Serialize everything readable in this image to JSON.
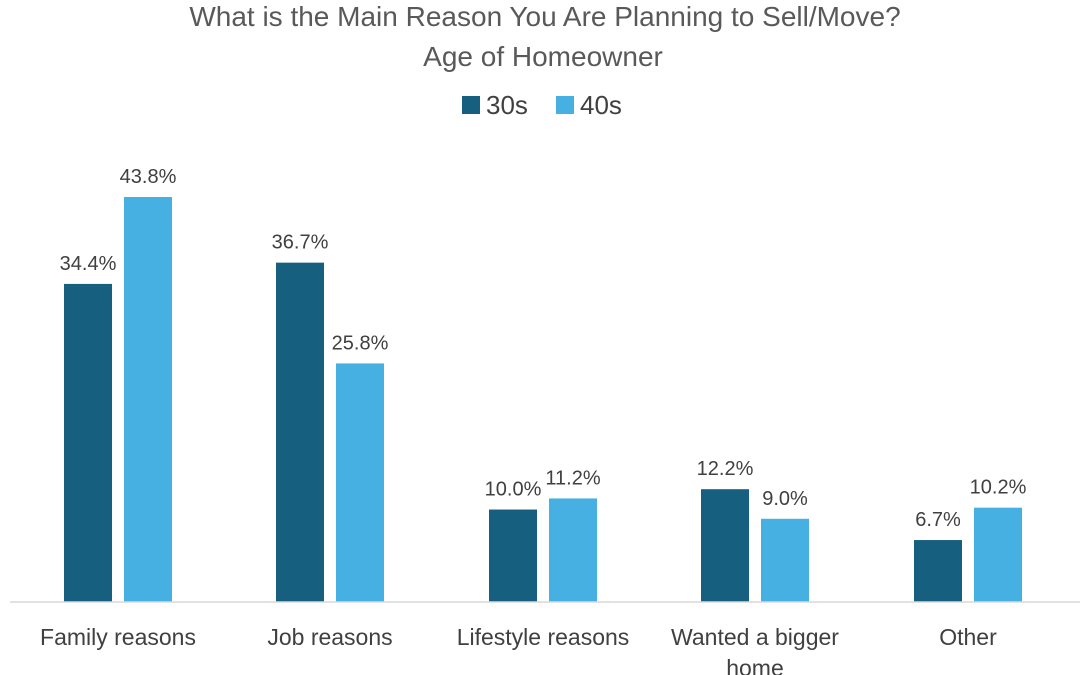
{
  "chart_data": {
    "type": "bar",
    "title": "What is the Main Reason You Are Planning to Sell/Move?",
    "subtitle": "Age of Homeowner",
    "categories": [
      "Family reasons",
      "Job reasons",
      "Lifestyle reasons",
      "Wanted a bigger home",
      "Other"
    ],
    "category_lines": [
      [
        "Family reasons"
      ],
      [
        "Job reasons"
      ],
      [
        "Lifestyle reasons"
      ],
      [
        "Wanted a bigger",
        "home"
      ],
      [
        "Other"
      ]
    ],
    "series": [
      {
        "name": "30s",
        "color": "#175f7f",
        "values": [
          34.4,
          36.7,
          10.0,
          12.2,
          6.7
        ],
        "labels": [
          "34.4%",
          "36.7%",
          "10.0%",
          "12.2%",
          "6.7%"
        ]
      },
      {
        "name": "40s",
        "color": "#45b0e1",
        "values": [
          43.8,
          25.8,
          11.2,
          9.0,
          10.2
        ],
        "labels": [
          "43.8%",
          "25.8%",
          "11.2%",
          "9.0%",
          "10.2%"
        ]
      }
    ],
    "ylim": [
      0,
      50
    ],
    "grid": false,
    "legend_position": "top"
  }
}
